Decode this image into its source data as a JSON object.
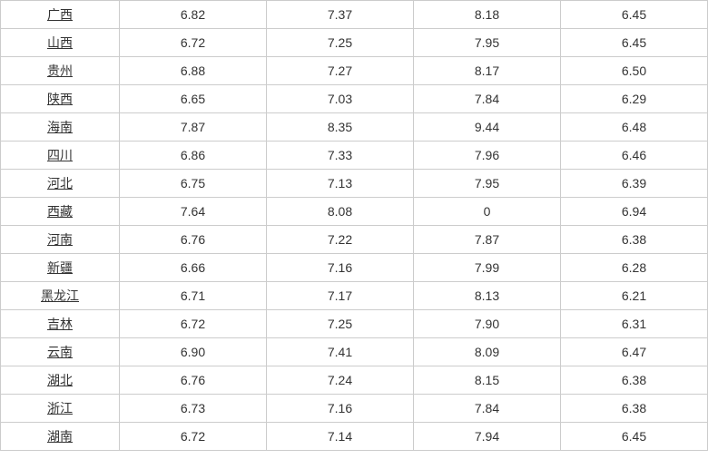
{
  "rows": [
    {
      "province": "广西",
      "v1": "6.82",
      "v2": "7.37",
      "v3": "8.18",
      "v4": "6.45"
    },
    {
      "province": "山西",
      "v1": "6.72",
      "v2": "7.25",
      "v3": "7.95",
      "v4": "6.45"
    },
    {
      "province": "贵州",
      "v1": "6.88",
      "v2": "7.27",
      "v3": "8.17",
      "v4": "6.50"
    },
    {
      "province": "陕西",
      "v1": "6.65",
      "v2": "7.03",
      "v3": "7.84",
      "v4": "6.29"
    },
    {
      "province": "海南",
      "v1": "7.87",
      "v2": "8.35",
      "v3": "9.44",
      "v4": "6.48"
    },
    {
      "province": "四川",
      "v1": "6.86",
      "v2": "7.33",
      "v3": "7.96",
      "v4": "6.46"
    },
    {
      "province": "河北",
      "v1": "6.75",
      "v2": "7.13",
      "v3": "7.95",
      "v4": "6.39"
    },
    {
      "province": "西藏",
      "v1": "7.64",
      "v2": "8.08",
      "v3": "0",
      "v4": "6.94"
    },
    {
      "province": "河南",
      "v1": "6.76",
      "v2": "7.22",
      "v3": "7.87",
      "v4": "6.38"
    },
    {
      "province": "新疆",
      "v1": "6.66",
      "v2": "7.16",
      "v3": "7.99",
      "v4": "6.28"
    },
    {
      "province": "黑龙江",
      "v1": "6.71",
      "v2": "7.17",
      "v3": "8.13",
      "v4": "6.21"
    },
    {
      "province": "吉林",
      "v1": "6.72",
      "v2": "7.25",
      "v3": "7.90",
      "v4": "6.31"
    },
    {
      "province": "云南",
      "v1": "6.90",
      "v2": "7.41",
      "v3": "8.09",
      "v4": "6.47"
    },
    {
      "province": "湖北",
      "v1": "6.76",
      "v2": "7.24",
      "v3": "8.15",
      "v4": "6.38"
    },
    {
      "province": "浙江",
      "v1": "6.73",
      "v2": "7.16",
      "v3": "7.84",
      "v4": "6.38"
    },
    {
      "province": "湖南",
      "v1": "6.72",
      "v2": "7.14",
      "v3": "7.94",
      "v4": "6.45"
    }
  ]
}
